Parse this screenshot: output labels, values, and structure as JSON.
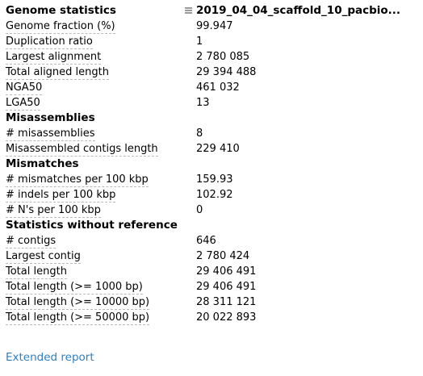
{
  "assembly_name": "2019_04_04_scaffold_10_pacbio...",
  "sections": [
    {
      "title": "Genome statistics",
      "rows": [
        {
          "label": "Genome fraction (%)",
          "value": "99.947"
        },
        {
          "label": "Duplication ratio",
          "value": "1"
        },
        {
          "label": "Largest alignment",
          "value": "2 780 085"
        },
        {
          "label": "Total aligned length",
          "value": "29 394 488"
        },
        {
          "label": "NGA50",
          "value": "461 032"
        },
        {
          "label": "LGA50",
          "value": "13"
        }
      ]
    },
    {
      "title": "Misassemblies",
      "rows": [
        {
          "label": "# misassemblies",
          "value": "8"
        },
        {
          "label": "Misassembled contigs length",
          "value": "229 410"
        }
      ]
    },
    {
      "title": "Mismatches",
      "rows": [
        {
          "label": "# mismatches per 100 kbp",
          "value": "159.93"
        },
        {
          "label": "# indels per 100 kbp",
          "value": "102.92"
        },
        {
          "label": "# N's per 100 kbp",
          "value": "0"
        }
      ]
    },
    {
      "title": "Statistics without reference",
      "rows": [
        {
          "label": "# contigs",
          "value": "646"
        },
        {
          "label": "Largest contig",
          "value": "2 780 424"
        },
        {
          "label": "Total length",
          "value": "29 406 491"
        },
        {
          "label": "Total length (>= 1000 bp)",
          "value": "29 406 491"
        },
        {
          "label": "Total length (>= 10000 bp)",
          "value": "28 311 121"
        },
        {
          "label": "Total length (>= 50000 bp)",
          "value": "20 022 893"
        }
      ]
    }
  ],
  "extended_report_label": "Extended report",
  "colors": {
    "link": "#2f7fc0",
    "dashed_underline": "#b9b9b9",
    "drag_handle": "#9a9a9a"
  }
}
